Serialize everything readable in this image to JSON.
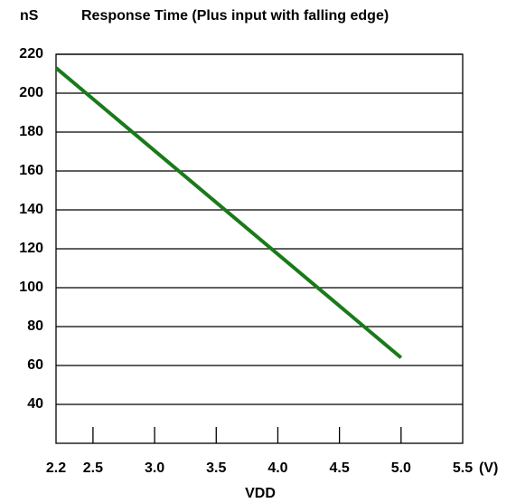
{
  "chart_data": {
    "type": "line",
    "title": "Response Time (Plus input with falling edge)",
    "y_unit": "nS",
    "x_unit": "(V)",
    "x_label": "VDD",
    "series": [
      {
        "name": "Response Time",
        "color": "#1a7a1a",
        "x": [
          2.2,
          5.0
        ],
        "values": [
          213,
          64
        ]
      }
    ],
    "xlim": [
      2.2,
      5.5
    ],
    "xticks": [
      2.2,
      2.5,
      {
        "value": 3,
        "label": "3.0"
      },
      3.5,
      {
        "value": 4,
        "label": "4.0"
      },
      4.5,
      {
        "value": 5,
        "label": "5.0"
      },
      5.5
    ],
    "ylim": [
      20,
      220
    ],
    "yticks": [
      40,
      60,
      80,
      100,
      120,
      140,
      160,
      180,
      200,
      220
    ],
    "grid": true
  }
}
